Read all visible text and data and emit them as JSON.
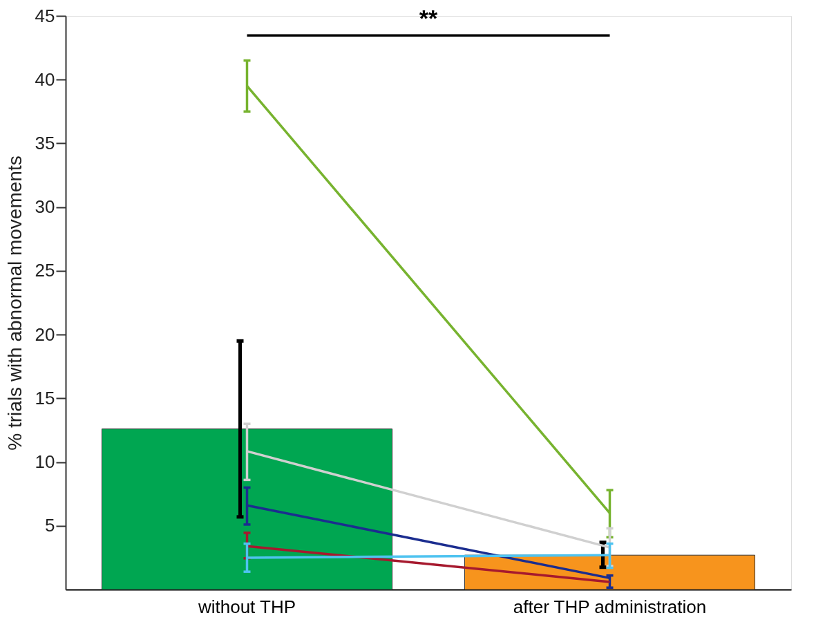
{
  "chart_data": {
    "type": "bar",
    "ylabel": "% trials with abnormal movements",
    "categories": [
      "without THP",
      "after THP administration"
    ],
    "values": [
      12.6,
      2.7
    ],
    "colors": [
      "#00a651",
      "#f7941d"
    ],
    "errors": [
      [
        5.7,
        19.5
      ],
      [
        1.75,
        3.7
      ]
    ],
    "series": [
      {
        "type": "line",
        "color": "#77b32f",
        "values": [
          39.5,
          6.0
        ],
        "errors": [
          [
            37.5,
            41.5
          ],
          [
            4.1,
            7.8
          ]
        ]
      },
      {
        "type": "line",
        "color": "#d0d0d0",
        "values": [
          10.85,
          3.3
        ],
        "errors": [
          [
            8.6,
            13.0
          ],
          [
            1.85,
            4.8
          ]
        ]
      },
      {
        "type": "line",
        "color": "#1b2d8f",
        "values": [
          6.6,
          0.9
        ],
        "errors": [
          [
            5.1,
            8.0
          ],
          [
            0.15,
            1.1
          ]
        ]
      },
      {
        "type": "line",
        "color": "#a6192e",
        "values": [
          3.4,
          0.6
        ],
        "errors": [
          [
            2.45,
            4.45
          ],
          null
        ]
      },
      {
        "type": "line",
        "color": "#4fc3f0",
        "values": [
          2.5,
          2.7
        ],
        "errors": [
          [
            1.4,
            3.6
          ],
          [
            1.7,
            3.6
          ]
        ]
      }
    ],
    "ylim": [
      0,
      45
    ],
    "yticks": [
      5,
      10,
      15,
      20,
      25,
      30,
      35,
      40,
      45
    ],
    "annotations": [
      "**"
    ],
    "grid": false
  }
}
